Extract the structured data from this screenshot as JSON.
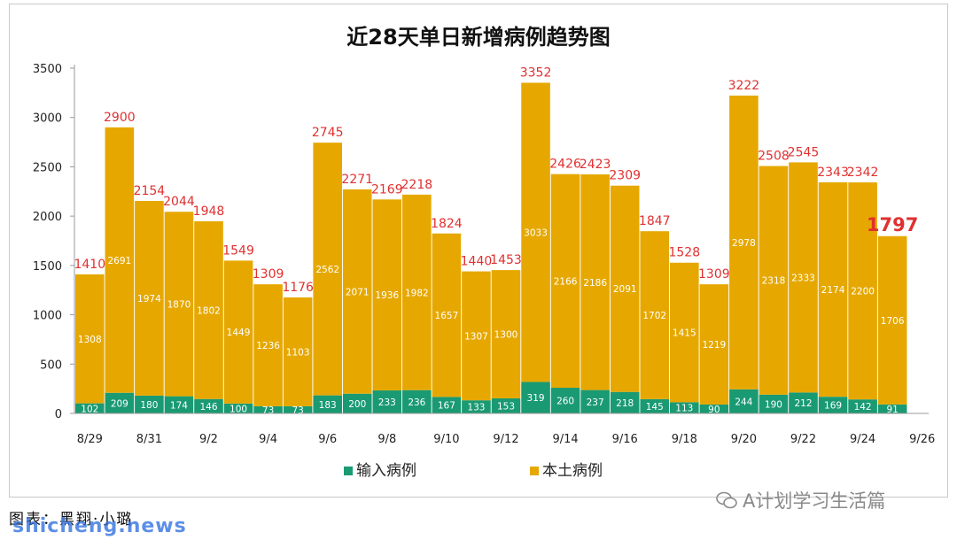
{
  "chart_data": {
    "type": "bar",
    "stacked": true,
    "title": "近28天单日新增病例趋势图",
    "categories": [
      "8/29",
      "8/30",
      "8/31",
      "9/1",
      "9/2",
      "9/3",
      "9/4",
      "9/5",
      "9/6",
      "9/7",
      "9/8",
      "9/9",
      "9/10",
      "9/11",
      "9/12",
      "9/13",
      "9/14",
      "9/15",
      "9/16",
      "9/17",
      "9/18",
      "9/19",
      "9/20",
      "9/21",
      "9/22",
      "9/23",
      "9/24",
      "9/25",
      "9/26"
    ],
    "x_tick_labels": [
      "8/29",
      "8/31",
      "9/2",
      "9/4",
      "9/6",
      "9/8",
      "9/10",
      "9/12",
      "9/14",
      "9/16",
      "9/18",
      "9/20",
      "9/22",
      "9/24",
      "9/26"
    ],
    "series": [
      {
        "name": "输入病例",
        "color": "#1a9a72",
        "values": [
          102,
          209,
          180,
          174,
          146,
          100,
          73,
          73,
          183,
          200,
          233,
          236,
          167,
          133,
          153,
          319,
          260,
          237,
          218,
          145,
          113,
          90,
          244,
          190,
          212,
          169,
          142,
          91,
          null
        ]
      },
      {
        "name": "本土病例",
        "color": "#e6a800",
        "values": [
          1308,
          2691,
          1974,
          1870,
          1802,
          1449,
          1236,
          1103,
          2562,
          2071,
          1936,
          1982,
          1657,
          1307,
          1300,
          3033,
          2166,
          2186,
          2091,
          1702,
          1415,
          1219,
          2978,
          2318,
          2333,
          2174,
          2200,
          1706,
          null
        ]
      }
    ],
    "totals": [
      1410,
      2900,
      2154,
      2044,
      1948,
      1549,
      1309,
      1176,
      2745,
      2271,
      2169,
      2218,
      1824,
      1440,
      1453,
      3352,
      2426,
      2423,
      2309,
      1847,
      1528,
      1309,
      3222,
      2508,
      2545,
      2343,
      2342,
      1797,
      null
    ],
    "highlighted_total": "9/25",
    "ylim": [
      0,
      3500
    ],
    "yticks": [
      0,
      500,
      1000,
      1500,
      2000,
      2500,
      3000,
      3500
    ],
    "xlabel": "",
    "ylabel": "",
    "legend_position": "bottom",
    "grid": false,
    "total_label_color": "#e03030"
  },
  "footer": {
    "credit": "图表：黑翔·小璐",
    "site": "shicheng.news"
  },
  "watermark": {
    "text": "A计划学习生活篇"
  }
}
